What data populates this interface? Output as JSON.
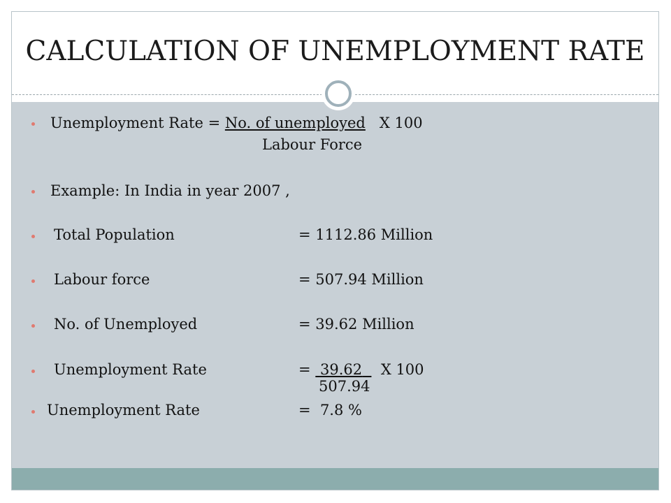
{
  "slide": {
    "title": "CALCULATION OF UNEMPLOYMENT RATE",
    "formula": {
      "lhs": "Unemployment Rate = ",
      "numerator": "No. of unemployed",
      "multiplier": "X 100",
      "denominator": "Labour Force"
    },
    "example": "Example: In India in year 2007 ,",
    "rows": [
      {
        "label": "Total Population",
        "value": "= 1112.86 Million"
      },
      {
        "label": "Labour force",
        "value": "= 507.94 Million"
      },
      {
        "label": "No. of Unemployed",
        "value": "= 39.62 Million"
      }
    ],
    "calc": {
      "label": "Unemployment Rate",
      "eq": "= ",
      "numerator": "39.62",
      "multiplier": "X 100",
      "denominator": "507.94"
    },
    "result": {
      "label": "Unemployment Rate",
      "value": "=  7.8 %"
    },
    "colors": {
      "content_bg": "#c8d0d6",
      "footer_band": "#8cadad",
      "bullet": "#e07a70"
    }
  }
}
